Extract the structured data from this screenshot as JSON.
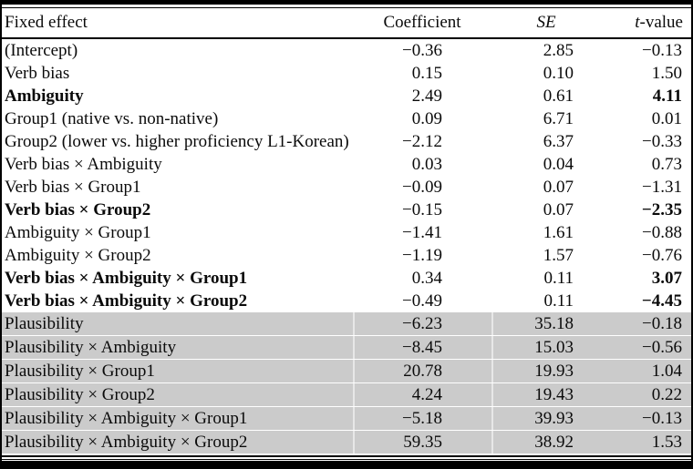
{
  "table": {
    "headers": {
      "effect": "Fixed effect",
      "coefficient": "Coefficient",
      "se": "SE",
      "t_italic": "t",
      "t_rest": "-value"
    },
    "shading_color": "#cbcbcb",
    "rows": [
      {
        "label": "(Intercept)",
        "coef": "−0.36",
        "se": "2.85",
        "t": "−0.13",
        "bold": false,
        "bold_t": false,
        "shaded": false
      },
      {
        "label": "Verb bias",
        "coef": "0.15",
        "se": "0.10",
        "t": "1.50",
        "bold": false,
        "bold_t": false,
        "shaded": false
      },
      {
        "label": "Ambiguity",
        "coef": "2.49",
        "se": "0.61",
        "t": "4.11",
        "bold": true,
        "bold_t": true,
        "shaded": false
      },
      {
        "label": "Group1 (native vs. non-native)",
        "coef": "0.09",
        "se": "6.71",
        "t": "0.01",
        "bold": false,
        "bold_t": false,
        "shaded": false
      },
      {
        "label": "Group2 (lower vs. higher proficiency L1-Korean)",
        "coef": "−2.12",
        "se": "6.37",
        "t": "−0.33",
        "bold": false,
        "bold_t": false,
        "shaded": false
      },
      {
        "label": "Verb bias × Ambiguity",
        "coef": "0.03",
        "se": "0.04",
        "t": "0.73",
        "bold": false,
        "bold_t": false,
        "shaded": false
      },
      {
        "label": "Verb bias × Group1",
        "coef": "−0.09",
        "se": "0.07",
        "t": "−1.31",
        "bold": false,
        "bold_t": false,
        "shaded": false
      },
      {
        "label": "Verb bias × Group2",
        "coef": "−0.15",
        "se": "0.07",
        "t": "−2.35",
        "bold": true,
        "bold_t": true,
        "shaded": false
      },
      {
        "label": "Ambiguity × Group1",
        "coef": "−1.41",
        "se": "1.61",
        "t": "−0.88",
        "bold": false,
        "bold_t": false,
        "shaded": false
      },
      {
        "label": "Ambiguity × Group2",
        "coef": "−1.19",
        "se": "1.57",
        "t": "−0.76",
        "bold": false,
        "bold_t": false,
        "shaded": false
      },
      {
        "label": "Verb bias × Ambiguity × Group1",
        "coef": "0.34",
        "se": "0.11",
        "t": "3.07",
        "bold": true,
        "bold_t": true,
        "shaded": false
      },
      {
        "label": "Verb bias × Ambiguity × Group2",
        "coef": "−0.49",
        "se": "0.11",
        "t": "−4.45",
        "bold": true,
        "bold_t": true,
        "shaded": false
      },
      {
        "label": "Plausibility",
        "coef": "−6.23",
        "se": "35.18",
        "t": "−0.18",
        "bold": false,
        "bold_t": false,
        "shaded": true
      },
      {
        "label": "Plausibility × Ambiguity",
        "coef": "−8.45",
        "se": "15.03",
        "t": "−0.56",
        "bold": false,
        "bold_t": false,
        "shaded": true
      },
      {
        "label": "Plausibility × Group1",
        "coef": "20.78",
        "se": "19.93",
        "t": "1.04",
        "bold": false,
        "bold_t": false,
        "shaded": true
      },
      {
        "label": "Plausibility × Group2",
        "coef": "4.24",
        "se": "19.43",
        "t": "0.22",
        "bold": false,
        "bold_t": false,
        "shaded": true
      },
      {
        "label": "Plausibility × Ambiguity × Group1",
        "coef": "−5.18",
        "se": "39.93",
        "t": "−0.13",
        "bold": false,
        "bold_t": false,
        "shaded": true
      },
      {
        "label": "Plausibility × Ambiguity × Group2",
        "coef": "59.35",
        "se": "38.92",
        "t": "1.53",
        "bold": false,
        "bold_t": false,
        "shaded": true
      }
    ]
  }
}
